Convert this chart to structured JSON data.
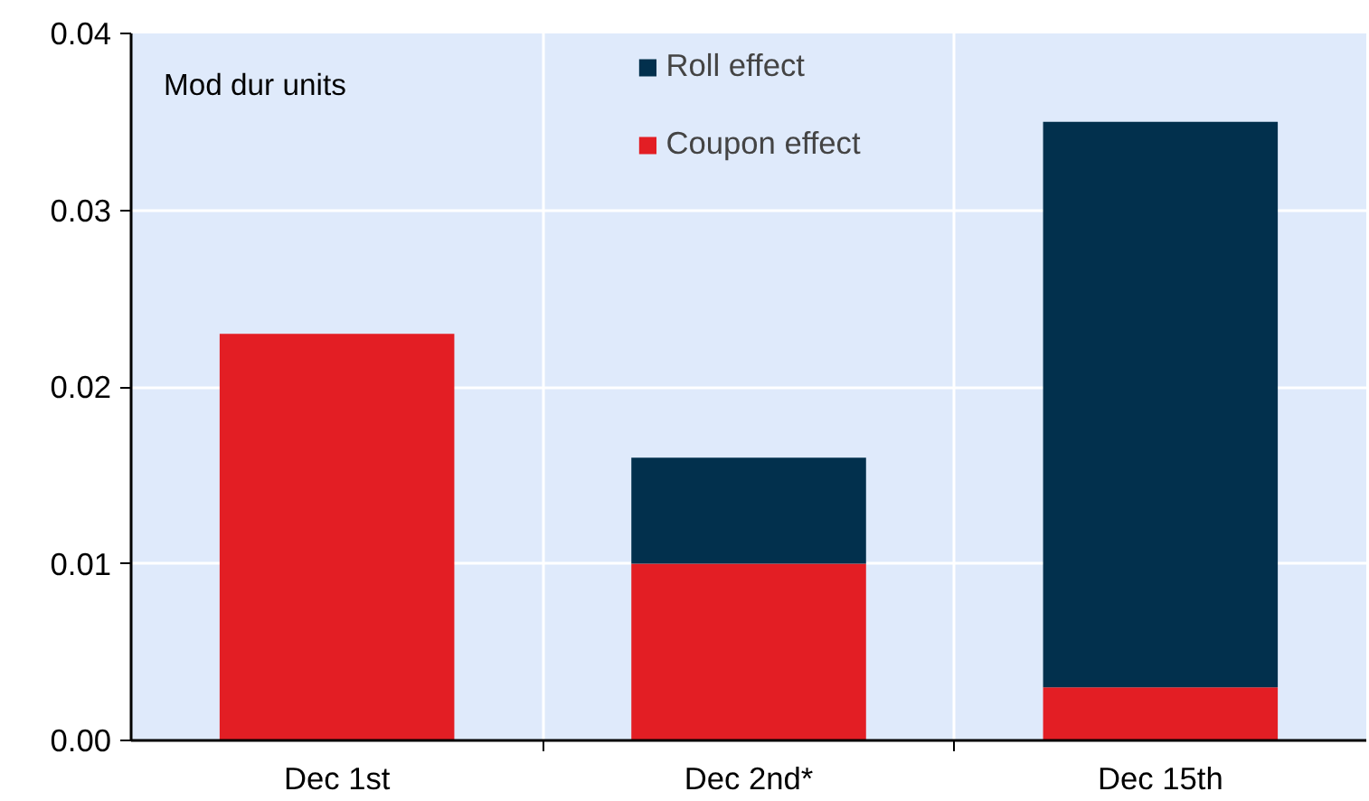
{
  "chart_data": {
    "type": "bar",
    "stacked": true,
    "categories": [
      "Dec 1st",
      "Dec 2nd*",
      "Dec 15th"
    ],
    "series": [
      {
        "name": "Coupon effect",
        "color": "#e31e24",
        "values": [
          0.023,
          0.01,
          0.003
        ]
      },
      {
        "name": "Roll effect",
        "color": "#02304d",
        "values": [
          null,
          0.006,
          0.032
        ]
      }
    ],
    "ylim": [
      0,
      0.04
    ],
    "yticks": [
      {
        "value": 0,
        "label": "0.00"
      },
      0.01,
      0.02,
      0.03,
      0.04
    ],
    "annotations": [
      "Mod dur units"
    ],
    "grid": true,
    "legend": "top"
  }
}
